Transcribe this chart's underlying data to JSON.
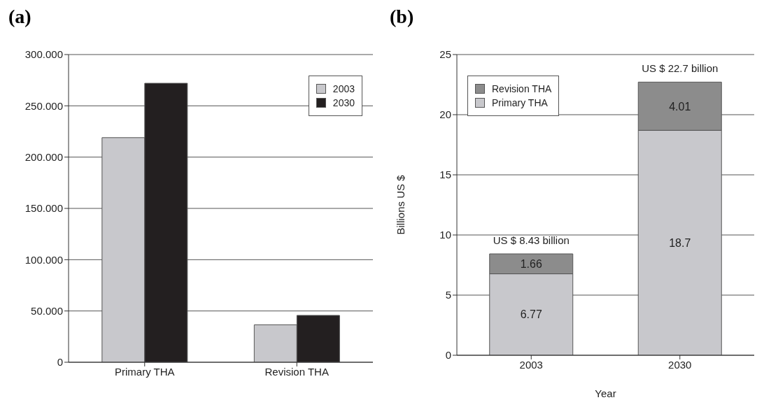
{
  "chart_data": [
    {
      "type": "bar",
      "title": "(a)",
      "categories": [
        "Primary THA",
        "Revision THA"
      ],
      "series": [
        {
          "name": "2003",
          "color": "#c8c8cc",
          "values": [
            219,
            36.5
          ]
        },
        {
          "name": "2030",
          "color": "#231f20",
          "values": [
            272,
            45.7
          ]
        }
      ],
      "ylim": [
        0,
        300
      ],
      "yticks": [
        0,
        {
          "value": 50,
          "label": "50.000"
        },
        {
          "value": 100,
          "label": "100.000"
        },
        {
          "value": 150,
          "label": "150.000"
        },
        {
          "value": 200,
          "label": "200.000"
        },
        {
          "value": 250,
          "label": "250.000"
        },
        {
          "value": 300,
          "label": "300.000"
        }
      ],
      "grid": "y",
      "legend": "top right"
    },
    {
      "type": "bar",
      "title": "(b)",
      "xlabel": "Year",
      "ylabel": "Billions US $",
      "categories": [
        "2003",
        "2030"
      ],
      "stacked": true,
      "series": [
        {
          "name": "Primary THA",
          "color": "#c8c8cc",
          "values": [
            6.77,
            18.7
          ]
        },
        {
          "name": "Revision THA",
          "color": "#8c8c8c",
          "values": [
            1.66,
            4.01
          ]
        }
      ],
      "ylim": [
        0,
        25
      ],
      "yticks": [
        0,
        5,
        10,
        15,
        20,
        25
      ],
      "grid": "y",
      "legend": "top left",
      "data_labels": true,
      "totals": [
        "US $ 8.43 billion",
        "US $ 22.7 billion"
      ]
    }
  ]
}
